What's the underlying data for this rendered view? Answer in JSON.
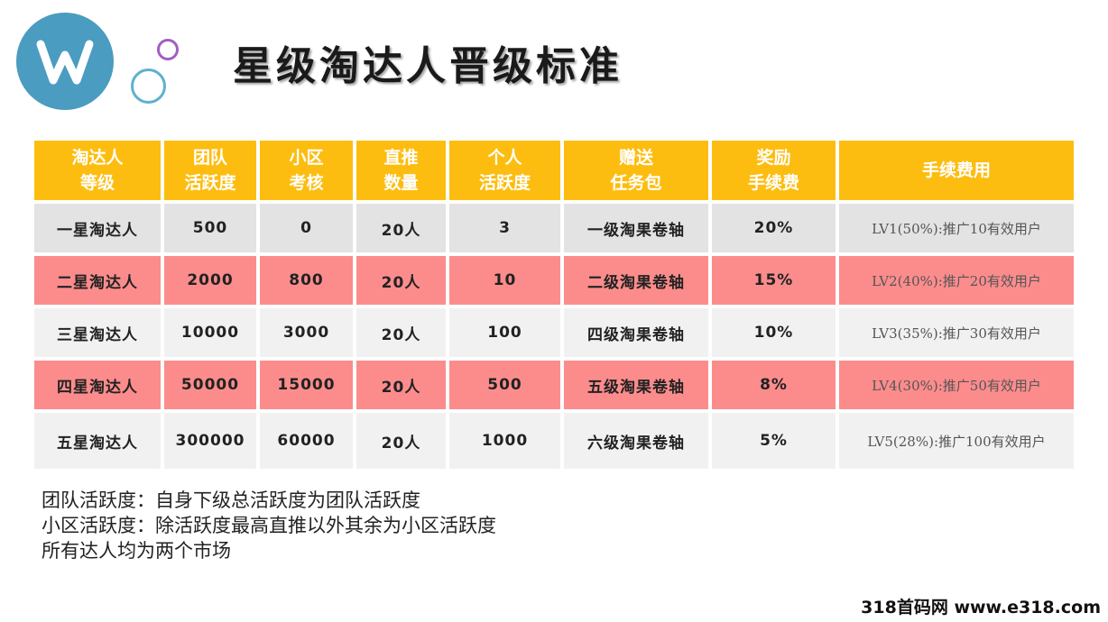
{
  "title": "星级淘达人晋级标准",
  "colors": {
    "header": "#fdbd10",
    "pink_row": "#fc8c8c",
    "gray_row": "#e3e3e3",
    "light_row": "#f1f1f1",
    "logo": "#4a9cc0"
  },
  "table": {
    "headers": [
      [
        "淘达人",
        "等级"
      ],
      [
        "团队",
        "活跃度"
      ],
      [
        "小区",
        "考核"
      ],
      [
        "直推",
        "数量"
      ],
      [
        "个人",
        "活跃度"
      ],
      [
        "赠送",
        "任务包"
      ],
      [
        "奖励",
        "手续费"
      ],
      [
        "手续费用"
      ]
    ],
    "rows": [
      [
        "一星淘达人",
        "500",
        "0",
        "20人",
        "3",
        "一级淘果卷轴",
        "20%",
        "LV1(50%):推广10有效用户"
      ],
      [
        "二星淘达人",
        "2000",
        "800",
        "20人",
        "10",
        "二级淘果卷轴",
        "15%",
        "LV2(40%):推广20有效用户"
      ],
      [
        "三星淘达人",
        "10000",
        "3000",
        "20人",
        "100",
        "四级淘果卷轴",
        "10%",
        "LV3(35%):推广30有效用户"
      ],
      [
        "四星淘达人",
        "50000",
        "15000",
        "20人",
        "500",
        "五级淘果卷轴",
        "8%",
        "LV4(30%):推广50有效用户"
      ],
      [
        "五星淘达人",
        "300000",
        "60000",
        "20人",
        "1000",
        "六级淘果卷轴",
        "5%",
        "LV5(28%):推广100有效用户"
      ]
    ]
  },
  "notes": [
    "团队活跃度：自身下级总活跃度为团队活跃度",
    "小区活跃度：除活跃度最高直推以外其余为小区活跃度",
    "所有达人均为两个市场"
  ],
  "watermark": "318首码网 www.e318.com"
}
